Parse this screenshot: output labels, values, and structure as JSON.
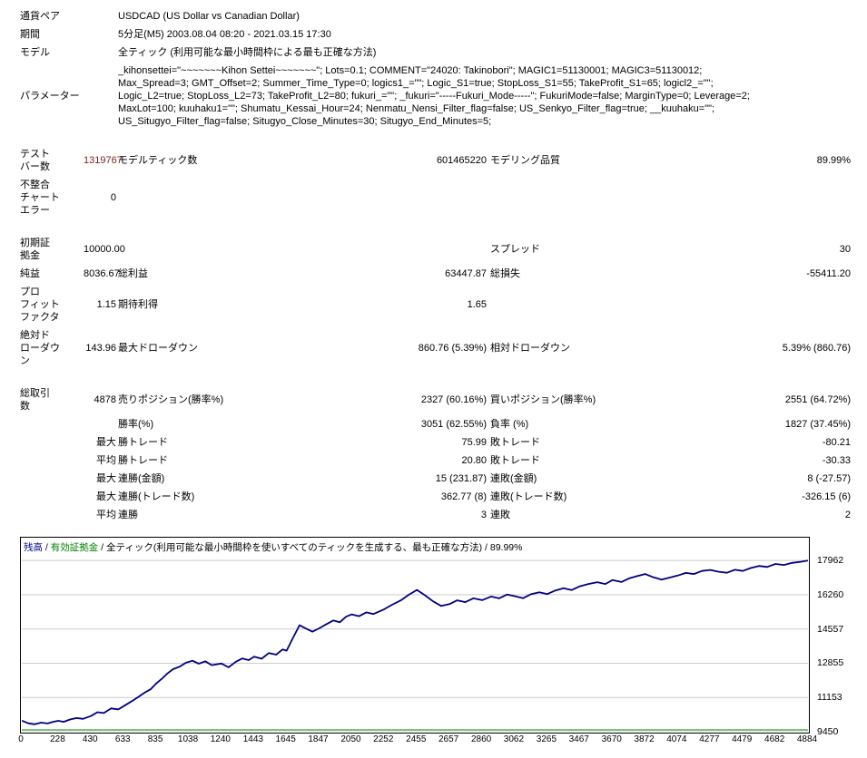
{
  "header": {
    "currency_pair_label": "通貨ペア",
    "currency_pair": "USDCAD (US Dollar vs Canadian Dollar)",
    "period_label": "期間",
    "period": "5分足(M5) 2003.08.04 08:20 - 2021.03.15 17:30",
    "model_label": "モデル",
    "model": "全ティック (利用可能な最小時間枠による最も正確な方法)",
    "params_label": "パラメーター",
    "params_lines": [
      "_kihonsettei=\"~~~~~~~Kihon Settei~~~~~~~\"; Lots=0.1; COMMENT=\"24020: Takinobori\"; MAGIC1=51130001; MAGIC3=51130012;",
      "Max_Spread=3; GMT_Offset=2; Summer_Time_Type=0; logics1_=\"\"; Logic_S1=true; StopLoss_S1=55; TakeProfit_S1=65; logicl2_=\"\";",
      "Logic_L2=true; StopLoss_L2=73; TakeProfit_L2=80; fukuri_=\"\"; _fukuri=\"-----Fukuri_Mode-----\"; FukuriMode=false; MarginType=0; Leverage=2;",
      "MaxLot=100; kuuhaku1=\"\"; Shumatu_Kessai_Hour=24; Nenmatu_Nensi_Filter_flag=false; US_Senkyo_Filter_flag=true; __kuuhaku=\"\";",
      "US_Situgyo_Filter_flag=false; Situgyo_Close_Minutes=30; Situgyo_End_Minutes=5;"
    ]
  },
  "stats": {
    "test_bars_label": "テスト\nバー数",
    "test_bars": "1319767",
    "model_ticks_label": "モデルティック数",
    "model_ticks": "601465220",
    "modeling_quality_label": "モデリング品質",
    "modeling_quality": "89.99%",
    "mismatch_errors_label": "不整合\nチャート\nエラー",
    "mismatch_errors": "0",
    "initial_deposit_label": "初期証\n拠金",
    "initial_deposit": "10000.00",
    "spread_label": "スプレッド",
    "spread": "30",
    "net_profit_label": "純益",
    "net_profit": "8036.67",
    "gross_profit_label": "総利益",
    "gross_profit": "63447.87",
    "gross_loss_label": "総損失",
    "gross_loss": "-55411.20",
    "profit_factor_label": "プロ\nフィット\nファクタ",
    "profit_factor": "1.15",
    "expected_payoff_label": "期待利得",
    "expected_payoff": "1.65",
    "absolute_dd_label": "絶対ド\nローダウ\nン",
    "absolute_dd": "143.96",
    "maximal_dd_label": "最大ドローダウン",
    "maximal_dd": "860.76 (5.39%)",
    "relative_dd_label": "相対ドローダウン",
    "relative_dd": "5.39% (860.76)",
    "total_trades_label": "総取引\n数",
    "total_trades": "4878",
    "short_positions_label": "売りポジション(勝率%)",
    "short_positions": "2327 (60.16%)",
    "long_positions_label": "買いポジション(勝率%)",
    "long_positions": "2551 (64.72%)",
    "profit_trades_label": "勝率(%)",
    "profit_trades": "3051 (62.55%)",
    "loss_trades_label": "負率 (%)",
    "loss_trades": "1827 (37.45%)",
    "largest_label": "最大",
    "average_label": "平均",
    "win_trade_label": "勝トレード",
    "largest_profit": "75.99",
    "loss_trade_label": "敗トレード",
    "largest_loss": "-80.21",
    "avg_profit": "20.80",
    "avg_loss": "-30.33",
    "consec_wins_money_label": "連勝(金額)",
    "max_consec_wins": "15 (231.87)",
    "consec_losses_money_label": "連敗(金額)",
    "max_consec_losses": "8 (-27.57)",
    "consec_wins_count_label": "連勝(トレード数)",
    "max_consec_profit": "362.77 (8)",
    "consec_losses_count_label": "連敗(トレード数)",
    "max_consec_loss": "-326.15 (6)",
    "consec_wins_label": "連勝",
    "avg_consec_wins": "3",
    "consec_losses_label": "連敗",
    "avg_consec_losses": "2"
  },
  "chart_data": {
    "type": "line",
    "legend": [
      {
        "name": "balance-label",
        "text": "残高",
        "color": "#000080"
      },
      {
        "name": "sep",
        "text": " / ",
        "color": "#000000"
      },
      {
        "name": "equity-label",
        "text": "有効証拠金",
        "color": "#008000"
      },
      {
        "name": "sep",
        "text": " / ",
        "color": "#000000"
      },
      {
        "name": "model-label",
        "text": "全ティック(利用可能な最小時間枠を使いすべてのティックを生成する、最も正確な方法)",
        "color": "#000000"
      },
      {
        "name": "quality-label",
        "text": " / 89.99%",
        "color": "#000000"
      }
    ],
    "xlabel": "",
    "ylabel": "",
    "xlim": [
      0,
      4884
    ],
    "ylim": [
      9450,
      19050
    ],
    "grid": "horizontal",
    "xticks": [
      0,
      228,
      430,
      633,
      835,
      1038,
      1240,
      1443,
      1645,
      1847,
      2050,
      2252,
      2455,
      2657,
      2860,
      3062,
      3265,
      3467,
      3670,
      3872,
      4074,
      4277,
      4479,
      4682,
      4884
    ],
    "yticks": [
      17962,
      16260,
      14557,
      12855,
      11153,
      9450
    ],
    "grid_color": "#cccccc",
    "series": [
      {
        "name": "balance",
        "color": "#000080",
        "width": 1.8,
        "points": [
          [
            0,
            10000
          ],
          [
            40,
            9870
          ],
          [
            80,
            9820
          ],
          [
            120,
            9900
          ],
          [
            160,
            9860
          ],
          [
            200,
            9950
          ],
          [
            228,
            9990
          ],
          [
            260,
            9940
          ],
          [
            300,
            10060
          ],
          [
            340,
            10130
          ],
          [
            380,
            10090
          ],
          [
            430,
            10230
          ],
          [
            470,
            10420
          ],
          [
            510,
            10380
          ],
          [
            555,
            10610
          ],
          [
            600,
            10560
          ],
          [
            633,
            10720
          ],
          [
            680,
            10950
          ],
          [
            720,
            11160
          ],
          [
            760,
            11380
          ],
          [
            800,
            11560
          ],
          [
            835,
            11850
          ],
          [
            870,
            12080
          ],
          [
            905,
            12350
          ],
          [
            940,
            12560
          ],
          [
            980,
            12680
          ],
          [
            1020,
            12880
          ],
          [
            1060,
            12980
          ],
          [
            1100,
            12830
          ],
          [
            1140,
            12950
          ],
          [
            1180,
            12760
          ],
          [
            1240,
            12840
          ],
          [
            1285,
            12650
          ],
          [
            1330,
            12930
          ],
          [
            1370,
            13090
          ],
          [
            1410,
            13010
          ],
          [
            1443,
            13180
          ],
          [
            1490,
            13080
          ],
          [
            1535,
            13360
          ],
          [
            1580,
            13280
          ],
          [
            1620,
            13540
          ],
          [
            1645,
            13480
          ],
          [
            1685,
            14120
          ],
          [
            1725,
            14740
          ],
          [
            1765,
            14580
          ],
          [
            1805,
            14420
          ],
          [
            1847,
            14590
          ],
          [
            1890,
            14780
          ],
          [
            1935,
            14980
          ],
          [
            1975,
            14890
          ],
          [
            2015,
            15170
          ],
          [
            2050,
            15280
          ],
          [
            2095,
            15190
          ],
          [
            2140,
            15380
          ],
          [
            2185,
            15300
          ],
          [
            2252,
            15540
          ],
          [
            2300,
            15760
          ],
          [
            2355,
            15980
          ],
          [
            2405,
            16260
          ],
          [
            2455,
            16500
          ],
          [
            2505,
            16230
          ],
          [
            2555,
            15930
          ],
          [
            2605,
            15700
          ],
          [
            2657,
            15790
          ],
          [
            2705,
            15980
          ],
          [
            2755,
            15890
          ],
          [
            2805,
            16080
          ],
          [
            2860,
            15990
          ],
          [
            2915,
            16170
          ],
          [
            2965,
            16080
          ],
          [
            3015,
            16270
          ],
          [
            3062,
            16190
          ],
          [
            3115,
            16090
          ],
          [
            3165,
            16290
          ],
          [
            3215,
            16380
          ],
          [
            3265,
            16290
          ],
          [
            3315,
            16470
          ],
          [
            3365,
            16580
          ],
          [
            3415,
            16490
          ],
          [
            3467,
            16680
          ],
          [
            3520,
            16790
          ],
          [
            3575,
            16880
          ],
          [
            3625,
            16790
          ],
          [
            3670,
            16990
          ],
          [
            3725,
            16890
          ],
          [
            3775,
            17080
          ],
          [
            3825,
            17190
          ],
          [
            3872,
            17290
          ],
          [
            3925,
            17120
          ],
          [
            3975,
            17010
          ],
          [
            4025,
            17110
          ],
          [
            4074,
            17210
          ],
          [
            4125,
            17340
          ],
          [
            4175,
            17290
          ],
          [
            4225,
            17440
          ],
          [
            4277,
            17490
          ],
          [
            4330,
            17400
          ],
          [
            4380,
            17350
          ],
          [
            4430,
            17500
          ],
          [
            4479,
            17440
          ],
          [
            4530,
            17590
          ],
          [
            4580,
            17690
          ],
          [
            4630,
            17640
          ],
          [
            4682,
            17790
          ],
          [
            4735,
            17740
          ],
          [
            4785,
            17840
          ],
          [
            4835,
            17890
          ],
          [
            4884,
            17960
          ]
        ]
      },
      {
        "name": "lots",
        "color": "#008000",
        "width": 1,
        "points": [
          [
            0,
            9540
          ],
          [
            4884,
            9540
          ]
        ]
      }
    ]
  }
}
